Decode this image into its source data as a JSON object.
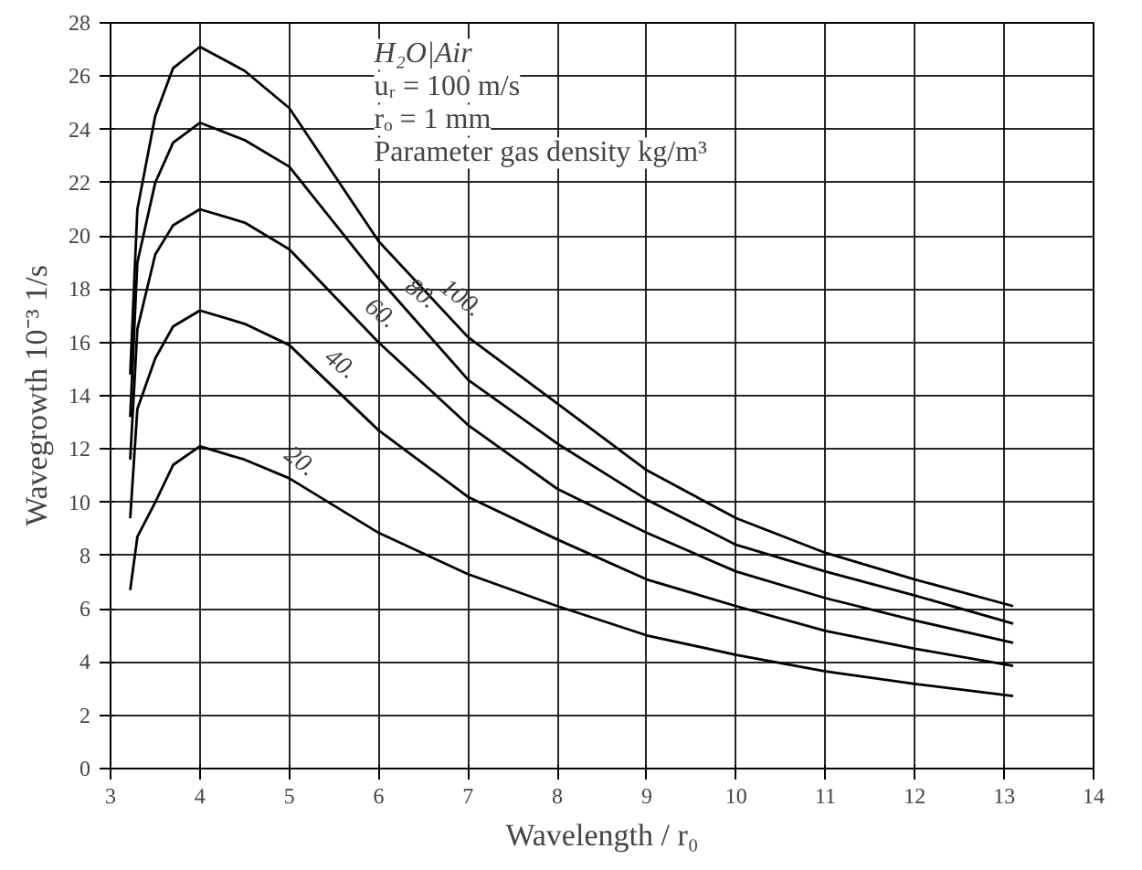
{
  "chart_data": {
    "type": "line",
    "xlabel": "Wavelength / r₀",
    "ylabel": "Wavegrowth 10⁻³ 1/s",
    "xlim": [
      3,
      14
    ],
    "ylim": [
      0,
      28
    ],
    "xticks": [
      3,
      4,
      5,
      6,
      7,
      8,
      9,
      10,
      11,
      12,
      13,
      14
    ],
    "yticks": [
      0,
      2,
      4,
      6,
      8,
      10,
      12,
      14,
      16,
      18,
      20,
      22,
      24,
      26,
      28
    ],
    "grid": true,
    "marker": "none",
    "line_style": "solid",
    "x": [
      3.22,
      3.3,
      3.5,
      3.7,
      4,
      4.5,
      5,
      6,
      7,
      8,
      9,
      10,
      11,
      12,
      13.1
    ],
    "series": [
      {
        "name": "20.",
        "color": "#000000",
        "values": [
          6.7,
          8.7,
          10.0,
          11.4,
          12.1,
          11.6,
          10.9,
          8.85,
          7.3,
          6.1,
          5.0,
          4.27,
          3.65,
          3.18,
          2.72
        ]
      },
      {
        "name": "40.",
        "color": "#000000",
        "values": [
          9.4,
          13.5,
          15.4,
          16.6,
          17.2,
          16.7,
          15.9,
          12.7,
          10.2,
          8.6,
          7.1,
          6.1,
          5.17,
          4.5,
          3.86
        ]
      },
      {
        "name": "60.",
        "color": "#000000",
        "values": [
          11.6,
          16.5,
          19.3,
          20.4,
          21.0,
          20.5,
          19.5,
          16.0,
          12.9,
          10.5,
          8.85,
          7.4,
          6.4,
          5.56,
          4.72
        ]
      },
      {
        "name": "80.",
        "color": "#000000",
        "values": [
          13.2,
          19.0,
          22.0,
          23.5,
          24.25,
          23.6,
          22.6,
          18.4,
          14.6,
          12.2,
          10.1,
          8.4,
          7.4,
          6.5,
          5.44
        ]
      },
      {
        "name": "100.",
        "color": "#000000",
        "values": [
          14.8,
          21.0,
          24.5,
          26.3,
          27.1,
          26.2,
          24.8,
          19.8,
          16.2,
          13.7,
          11.2,
          9.4,
          8.1,
          7.1,
          6.1
        ]
      }
    ],
    "annotations": [
      "H₂O|Air",
      "uᵣ = 100 m/s",
      "rₒ = 1 mm",
      "Parameter gas density kg/m³"
    ]
  }
}
